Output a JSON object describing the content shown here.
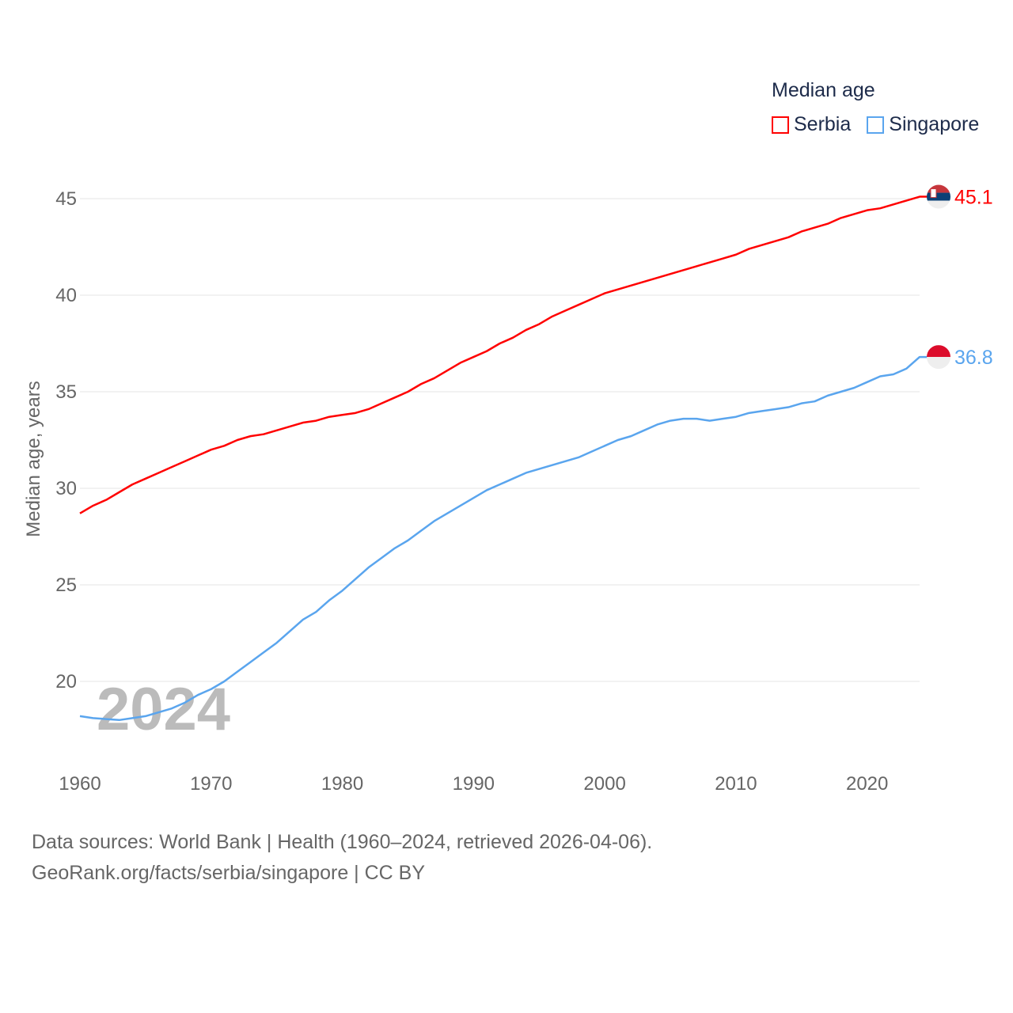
{
  "chart_data": {
    "type": "line",
    "title": "Median age",
    "xlabel": "",
    "ylabel": "Median age, years",
    "xlim": [
      1960,
      2024
    ],
    "ylim": [
      17,
      47
    ],
    "yticks": [
      20,
      25,
      30,
      35,
      40,
      45
    ],
    "xticks": [
      1960,
      1970,
      1980,
      1990,
      2000,
      2010,
      2020
    ],
    "grid": true,
    "legend_position": "top-right",
    "year_label": "2024",
    "x": [
      1960,
      1961,
      1962,
      1963,
      1964,
      1965,
      1966,
      1967,
      1968,
      1969,
      1970,
      1971,
      1972,
      1973,
      1974,
      1975,
      1976,
      1977,
      1978,
      1979,
      1980,
      1981,
      1982,
      1983,
      1984,
      1985,
      1986,
      1987,
      1988,
      1989,
      1990,
      1991,
      1992,
      1993,
      1994,
      1995,
      1996,
      1997,
      1998,
      1999,
      2000,
      2001,
      2002,
      2003,
      2004,
      2005,
      2006,
      2007,
      2008,
      2009,
      2010,
      2011,
      2012,
      2013,
      2014,
      2015,
      2016,
      2017,
      2018,
      2019,
      2020,
      2021,
      2022,
      2023,
      2024
    ],
    "series": [
      {
        "name": "Serbia",
        "color": "#ff0000",
        "end_label": "45.1",
        "values": [
          28.7,
          29.1,
          29.4,
          29.8,
          30.2,
          30.5,
          30.8,
          31.1,
          31.4,
          31.7,
          32.0,
          32.2,
          32.5,
          32.7,
          32.8,
          33.0,
          33.2,
          33.4,
          33.5,
          33.7,
          33.8,
          33.9,
          34.1,
          34.4,
          34.7,
          35.0,
          35.4,
          35.7,
          36.1,
          36.5,
          36.8,
          37.1,
          37.5,
          37.8,
          38.2,
          38.5,
          38.9,
          39.2,
          39.5,
          39.8,
          40.1,
          40.3,
          40.5,
          40.7,
          40.9,
          41.1,
          41.3,
          41.5,
          41.7,
          41.9,
          42.1,
          42.4,
          42.6,
          42.8,
          43.0,
          43.3,
          43.5,
          43.7,
          44.0,
          44.2,
          44.4,
          44.5,
          44.7,
          44.9,
          45.1
        ]
      },
      {
        "name": "Singapore",
        "color": "#5aa5ee",
        "end_label": "36.8",
        "values": [
          18.2,
          18.1,
          18.05,
          18.0,
          18.1,
          18.2,
          18.4,
          18.6,
          18.9,
          19.3,
          19.6,
          20.0,
          20.5,
          21.0,
          21.5,
          22.0,
          22.6,
          23.2,
          23.6,
          24.2,
          24.7,
          25.3,
          25.9,
          26.4,
          26.9,
          27.3,
          27.8,
          28.3,
          28.7,
          29.1,
          29.5,
          29.9,
          30.2,
          30.5,
          30.8,
          31.0,
          31.2,
          31.4,
          31.6,
          31.9,
          32.2,
          32.5,
          32.7,
          33.0,
          33.3,
          33.5,
          33.6,
          33.6,
          33.5,
          33.6,
          33.7,
          33.9,
          34.0,
          34.1,
          34.2,
          34.4,
          34.5,
          34.8,
          35.0,
          35.2,
          35.5,
          35.8,
          35.9,
          36.2,
          36.8
        ]
      }
    ]
  },
  "source": {
    "line1": "Data sources: World Bank | Health (1960–2024, retrieved 2026-04-06).",
    "line2": "GeoRank.org/facts/serbia/singapore | CC BY"
  }
}
